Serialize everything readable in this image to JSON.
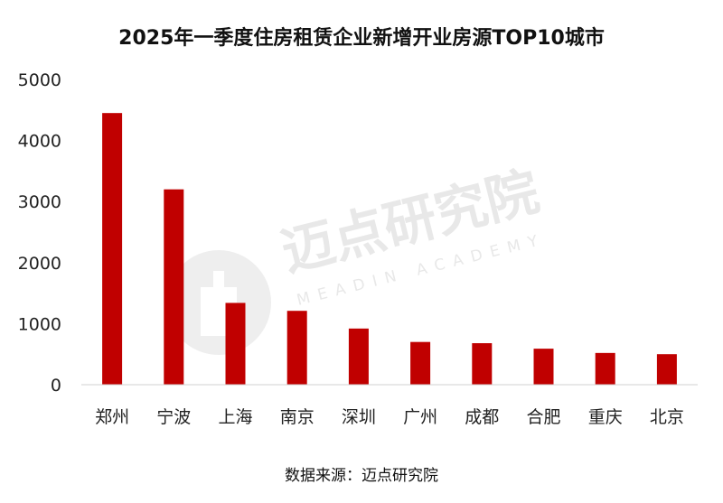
{
  "chart_data": {
    "type": "bar",
    "title": "2025年一季度住房租赁企业新增开业房源TOP10城市",
    "categories": [
      "郑州",
      "宁波",
      "上海",
      "南京",
      "深圳",
      "广州",
      "成都",
      "合肥",
      "重庆",
      "北京"
    ],
    "values": [
      4450,
      3200,
      1340,
      1210,
      920,
      700,
      680,
      590,
      520,
      500
    ],
    "ylim": [
      0,
      5000
    ],
    "yticks": [
      0,
      1000,
      2000,
      3000,
      4000,
      5000
    ],
    "xlabel": "",
    "ylabel": "",
    "grid": false,
    "legend": "none",
    "bar_color": "#C00000"
  },
  "source": "数据来源：迈点研究院",
  "watermark": {
    "text": "迈点研究院",
    "subtext": "MEADIN ACADEMY",
    "color": "#e6e6e6"
  }
}
